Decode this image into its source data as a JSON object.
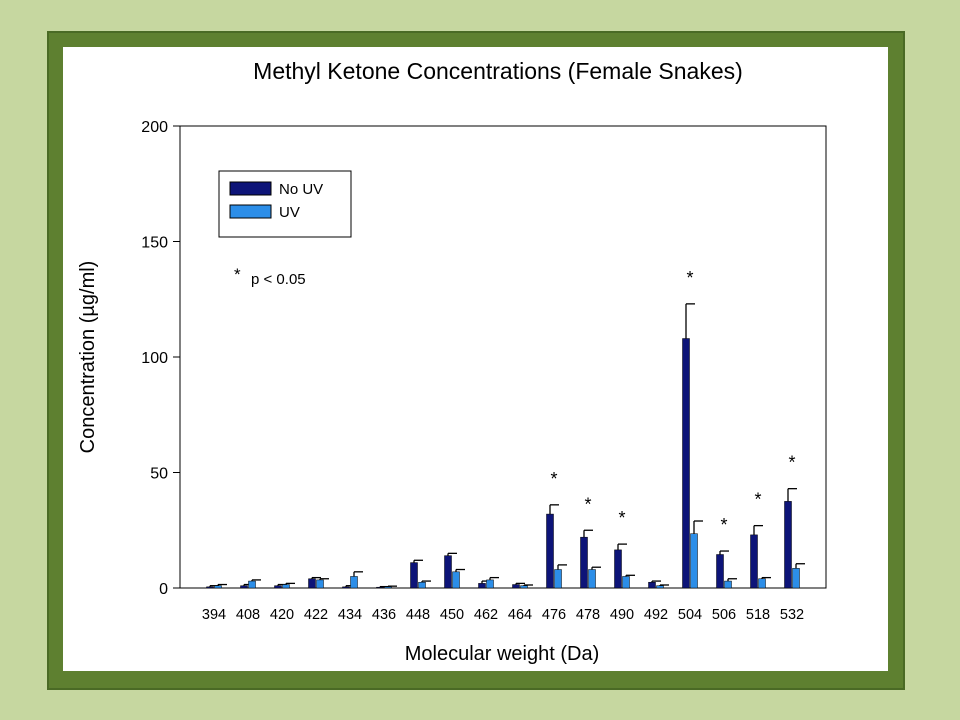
{
  "chart_data": {
    "type": "bar",
    "title": "Methyl Ketone Concentrations (Female Snakes)",
    "xlabel": "Molecular weight (Da)",
    "ylabel": "Concentration (µg/ml)",
    "ylim": [
      0,
      200
    ],
    "yticks": [
      "0",
      "50",
      "100",
      "150",
      "200"
    ],
    "categories": [
      "394",
      "408",
      "420",
      "422",
      "434",
      "436",
      "448",
      "450",
      "462",
      "464",
      "476",
      "478",
      "490",
      "492",
      "504",
      "506",
      "518",
      "532"
    ],
    "series": [
      {
        "name": "No UV",
        "color": "#0d1478",
        "values": [
          0.5,
          1,
          1,
          4,
          0.5,
          0.3,
          11,
          14,
          2,
          1.5,
          32,
          22,
          16.5,
          2.5,
          108,
          14.5,
          23,
          37.5
        ],
        "errors": [
          0.5,
          0.5,
          0.5,
          0.5,
          0.5,
          0.3,
          1,
          1,
          1,
          0.5,
          4,
          3,
          2.5,
          0.5,
          15,
          1.5,
          4,
          5.5
        ]
      },
      {
        "name": "UV",
        "color": "#2c8ee8",
        "values": [
          1,
          3,
          1.5,
          3.5,
          5,
          0.5,
          2.5,
          7,
          3.5,
          1,
          8,
          8,
          5,
          1,
          23.5,
          3,
          4,
          8.5
        ],
        "errors": [
          0.5,
          0.5,
          0.5,
          0.5,
          2,
          0.3,
          0.5,
          1,
          1,
          0.3,
          2,
          1,
          0.5,
          0.3,
          5.5,
          1,
          0.5,
          2
        ]
      }
    ],
    "significant_categories": [
      "476",
      "478",
      "490",
      "504",
      "506",
      "518",
      "532"
    ],
    "significance_marker": "*",
    "annotation": "p < 0.05",
    "legend_position": "top-left",
    "grid": false
  }
}
